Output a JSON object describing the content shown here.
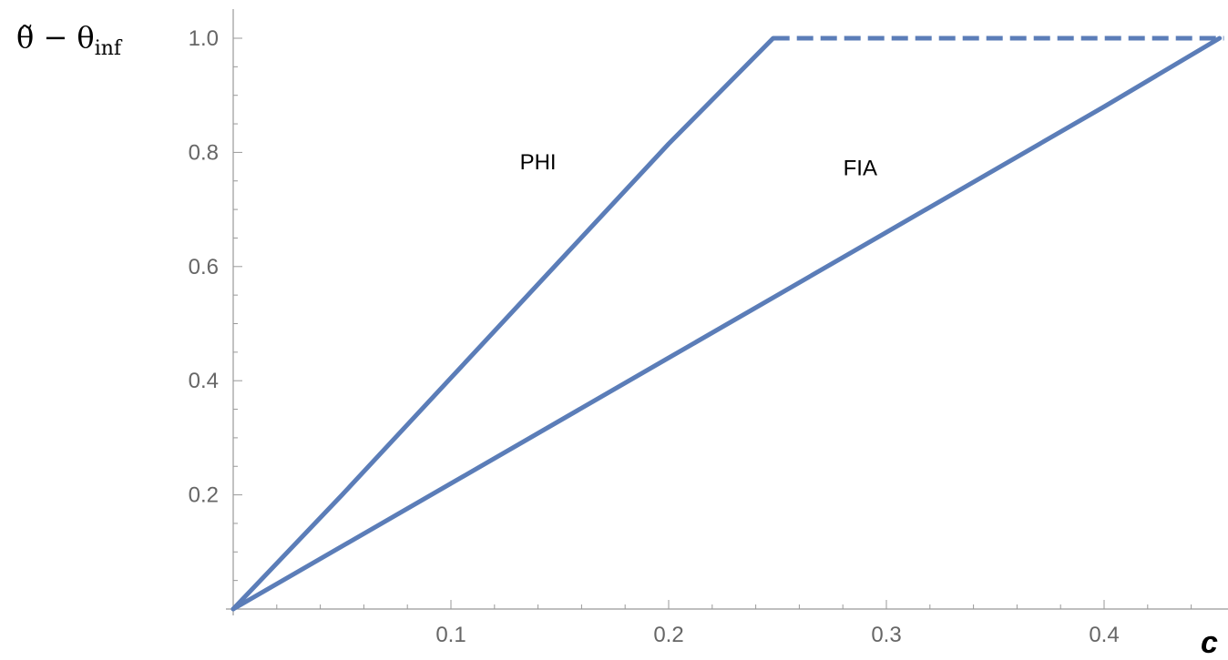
{
  "chart_data": {
    "type": "line",
    "title": "",
    "xlabel": "c",
    "ylabel_base": "θ̃ − θ",
    "ylabel_sub": "inf",
    "xlim": [
      0,
      0.455
    ],
    "ylim": [
      0,
      1.0
    ],
    "x_ticks": [
      0.1,
      0.2,
      0.3,
      0.4
    ],
    "x_tick_labels": [
      "0.1",
      "0.2",
      "0.3",
      "0.4"
    ],
    "y_ticks": [
      0.2,
      0.4,
      0.6,
      0.8,
      1.0
    ],
    "y_tick_labels": [
      "0.2",
      "0.4",
      "0.6",
      "0.8",
      "1.0"
    ],
    "grid": false,
    "colors": {
      "line": "#5b7db8",
      "axis": "#999999",
      "tick_text": "#666666"
    },
    "series": [
      {
        "name": "PHI",
        "style": "solid",
        "x": [
          0,
          0.05,
          0.1,
          0.15,
          0.2,
          0.248
        ],
        "y": [
          0,
          0.2,
          0.405,
          0.61,
          0.815,
          1.0
        ]
      },
      {
        "name": "",
        "style": "dashed",
        "x": [
          0.248,
          0.455
        ],
        "y": [
          1.0,
          1.0
        ]
      },
      {
        "name": "FIA",
        "style": "solid",
        "x": [
          0,
          0.1,
          0.2,
          0.3,
          0.4,
          0.453
        ],
        "y": [
          0,
          0.22,
          0.44,
          0.66,
          0.88,
          1.0
        ]
      }
    ],
    "annotations": [
      {
        "text": "PHI",
        "x": 0.14,
        "y": 0.77
      },
      {
        "text": "FIA",
        "x": 0.288,
        "y": 0.76
      }
    ]
  }
}
